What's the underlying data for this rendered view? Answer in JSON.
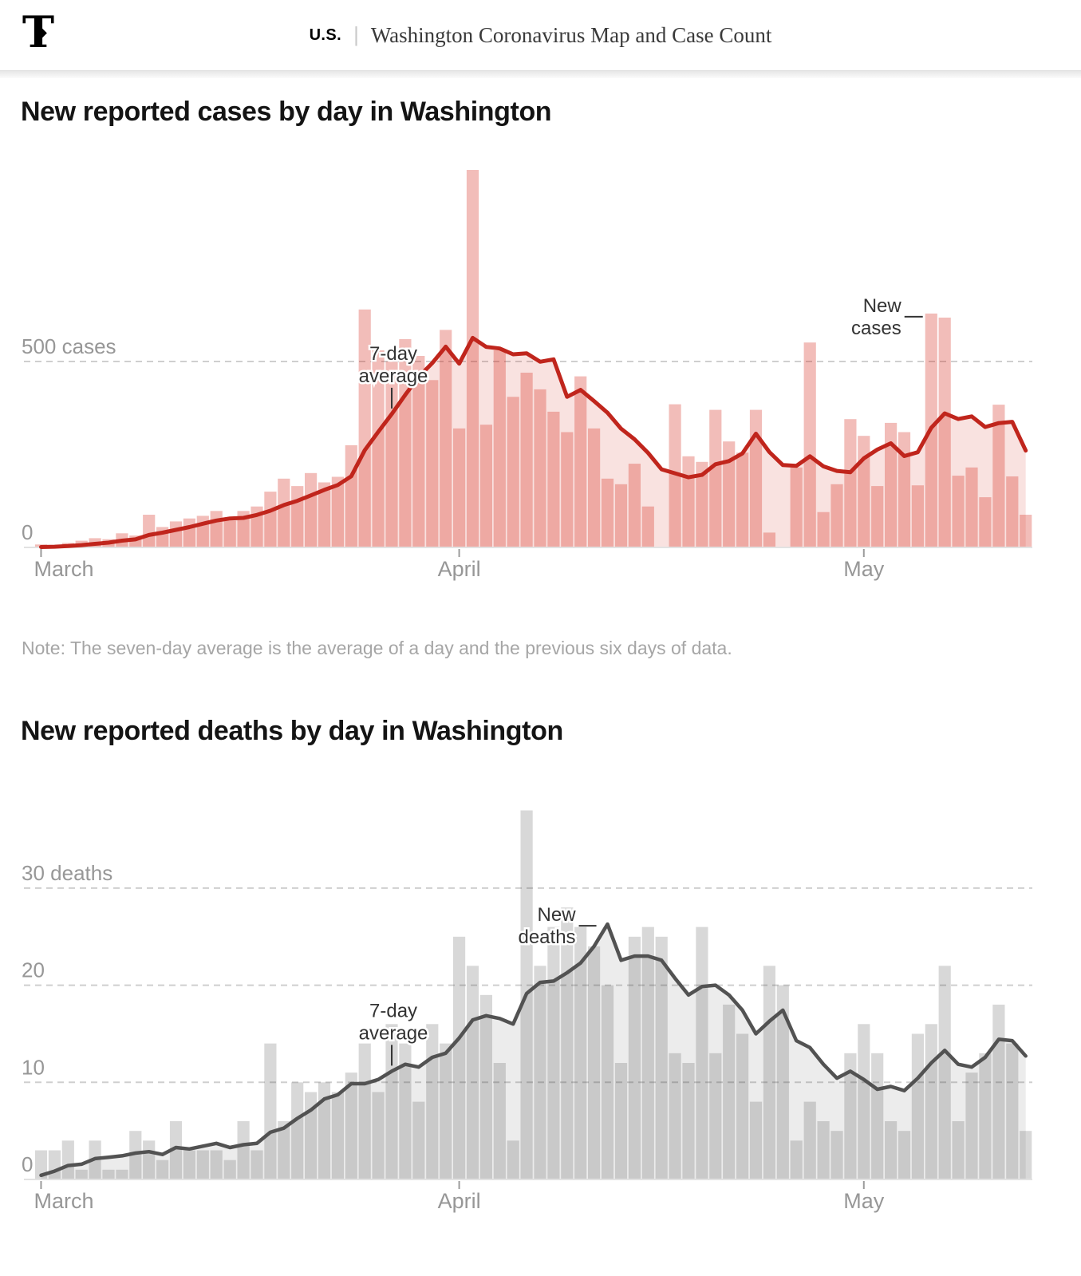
{
  "header": {
    "logo": "T",
    "section": "U.S.",
    "divider": "|",
    "title": "Washington Coronavirus Map and Case Count"
  },
  "note": "Note: The seven-day average is the average of a day and the previous six days of data.",
  "chart_data": [
    {
      "id": "cases",
      "type": "bar",
      "title": "New reported cases by day in Washington",
      "ylabel": "cases",
      "x_start_date": "March 1",
      "months": [
        "March",
        "April",
        "May"
      ],
      "month_start_indices": [
        0,
        31,
        61
      ],
      "y_gridlines": [
        {
          "value": 500,
          "label": "500 cases"
        },
        {
          "value": 0,
          "label": "0"
        }
      ],
      "ylim": [
        0,
        1040
      ],
      "grid": "dashed",
      "line_series_name": "7-day average",
      "line_rule": "mean of the day and previous six days",
      "values": [
        8,
        5,
        12,
        18,
        25,
        22,
        38,
        32,
        88,
        55,
        70,
        78,
        85,
        98,
        72,
        98,
        110,
        150,
        185,
        165,
        200,
        175,
        190,
        275,
        640,
        530,
        500,
        560,
        515,
        450,
        585,
        320,
        1015,
        330,
        530,
        405,
        470,
        425,
        365,
        310,
        460,
        320,
        185,
        170,
        225,
        110,
        0,
        385,
        245,
        230,
        370,
        285,
        255,
        370,
        40,
        0,
        215,
        551,
        95,
        170,
        345,
        300,
        165,
        335,
        310,
        167,
        629,
        618,
        193,
        215,
        135,
        384,
        191,
        88
      ],
      "annotations": [
        {
          "lines": [
            "7-day",
            "average"
          ],
          "pointer": "down",
          "index": 26
        },
        {
          "lines": [
            "New",
            "cases"
          ],
          "pointer": "right-to-bar",
          "index": 66
        }
      ],
      "colors": {
        "bar": "rgba(211,35,22,0.30)",
        "area": "rgba(211,35,22,0.135)",
        "line": "#c0251c"
      }
    },
    {
      "id": "deaths",
      "type": "bar",
      "title": "New reported deaths by day in Washington",
      "ylabel": "deaths",
      "x_start_date": "March 1",
      "months": [
        "March",
        "April",
        "May"
      ],
      "month_start_indices": [
        0,
        31,
        61
      ],
      "y_gridlines": [
        {
          "value": 30,
          "label": "30 deaths"
        },
        {
          "value": 20,
          "label": "20"
        },
        {
          "value": 10,
          "label": "10"
        },
        {
          "value": 0,
          "label": "0"
        }
      ],
      "ylim": [
        0,
        40
      ],
      "grid": "dashed",
      "line_series_name": "7-day average",
      "line_rule": "mean of the day and previous six days",
      "values": [
        3,
        3,
        4,
        1,
        4,
        1,
        1,
        5,
        4,
        2,
        6,
        3,
        3,
        3,
        2,
        6,
        3,
        14,
        6,
        10,
        9,
        10,
        9,
        11,
        14,
        9,
        16,
        14,
        8,
        16,
        14,
        25,
        22,
        19,
        12,
        4,
        38,
        22,
        26,
        28,
        26,
        24,
        20,
        12,
        25,
        26,
        25,
        13,
        12,
        26,
        13,
        18,
        15,
        8,
        22,
        20,
        4,
        8,
        6,
        5,
        13,
        16,
        13,
        6,
        5,
        15,
        16,
        22,
        6,
        11,
        13,
        18,
        14,
        5
      ],
      "annotations": [
        {
          "lines": [
            "7-day",
            "average"
          ],
          "pointer": "down",
          "index": 26
        },
        {
          "lines": [
            "New",
            "deaths"
          ],
          "pointer": "right-to-line",
          "index": 42
        }
      ],
      "colors": {
        "bar": "rgba(70,70,70,0.21)",
        "area": "rgba(70,70,70,0.10)",
        "line": "#525252"
      }
    }
  ],
  "axis_style": {
    "gridline_color": "#cfcfcf",
    "baseline_color": "#e2e2e2",
    "tick_color": "#9b9b9b",
    "label_color": "#979797"
  }
}
